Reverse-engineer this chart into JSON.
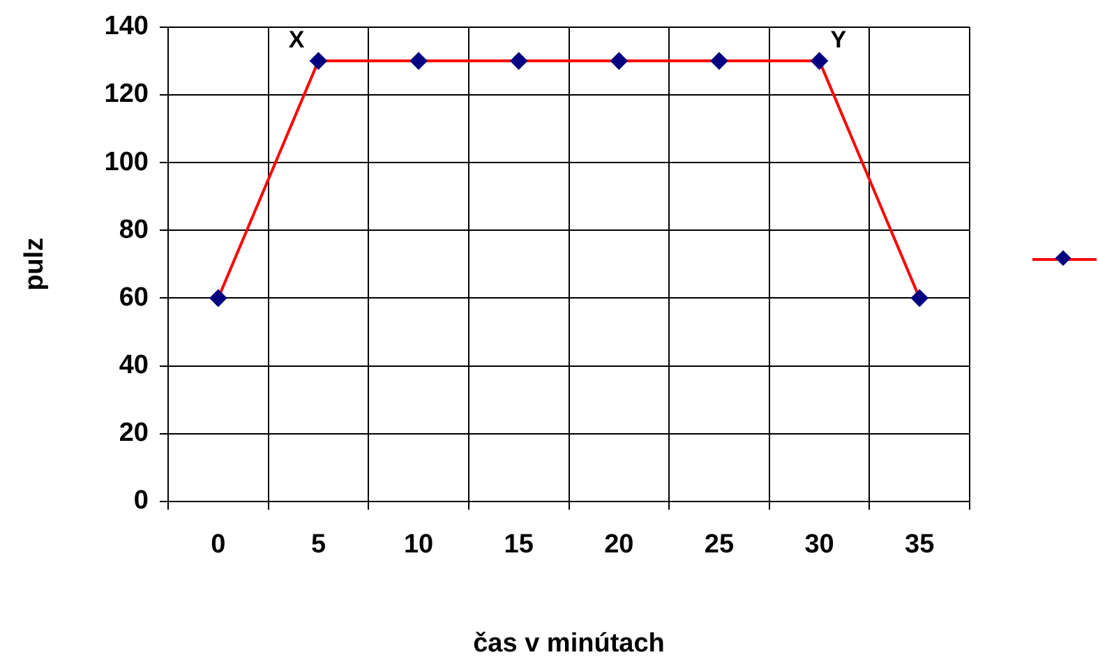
{
  "chart_data": {
    "type": "line",
    "xlabel": "čas v minútach",
    "ylabel": "pulz",
    "categories": [
      "0",
      "5",
      "10",
      "15",
      "20",
      "25",
      "30",
      "35"
    ],
    "series": [
      {
        "color": "#ff0000",
        "colors": [
          "#000080",
          "#000080",
          "#000080",
          "#000080",
          "#000080",
          "#000080",
          "#000080",
          "#000080"
        ],
        "values": [
          60,
          130,
          130,
          130,
          130,
          130,
          130,
          60
        ]
      }
    ],
    "marker": "diamond",
    "ylim": [
      0,
      140
    ],
    "yticks": [
      0,
      20,
      40,
      60,
      80,
      100,
      120,
      140
    ],
    "grid": true,
    "annotations": [
      {
        "text": "X",
        "x": "5",
        "y": 130
      },
      {
        "text": "Y",
        "x": "30",
        "y": 130
      }
    ]
  }
}
